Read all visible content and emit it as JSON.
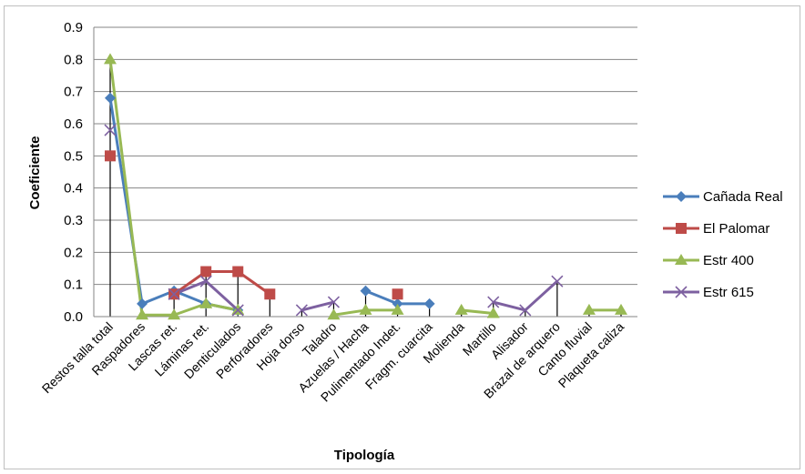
{
  "chart_data": {
    "type": "line",
    "title": "",
    "xlabel": "Tipología",
    "ylabel": "Coeficiente",
    "ylim": [
      0,
      0.9
    ],
    "yticks": [
      0.0,
      0.1,
      0.2,
      0.3,
      0.4,
      0.5,
      0.6,
      0.7,
      0.8,
      0.9
    ],
    "ytick_labels": [
      "0.0",
      "0.1",
      "0.2",
      "0.3",
      "0.4",
      "0.5",
      "0.6",
      "0.7",
      "0.8",
      "0.9"
    ],
    "grid": true,
    "legend_position": "right",
    "drop_lines": true,
    "categories": [
      "Restos talla total",
      "Raspadores",
      "Lascas ret.",
      "Láminas ret.",
      "Denticulados",
      "Perforadores",
      "Hoja dorso",
      "Taladro",
      "Azuelas / Hacha",
      "Pulimentado Indet.",
      "Fragm. cuarcita",
      "Molienda",
      "Martillo",
      "Alisador",
      "Brazal de arquero",
      "Canto fluvial",
      "Plaqueta caliza"
    ],
    "series": [
      {
        "name": "Cañada Real",
        "color": "#4a7ebb",
        "marker": "diamond",
        "values": [
          0.68,
          0.04,
          0.08,
          0.04,
          0.02,
          null,
          null,
          null,
          0.08,
          0.04,
          0.04,
          null,
          null,
          null,
          null,
          null,
          null
        ]
      },
      {
        "name": "El Palomar",
        "color": "#be4b48",
        "marker": "square",
        "values": [
          0.5,
          null,
          0.07,
          0.14,
          0.14,
          0.07,
          null,
          null,
          null,
          0.07,
          null,
          null,
          null,
          null,
          null,
          null,
          null
        ]
      },
      {
        "name": "Estr 400",
        "color": "#98b954",
        "marker": "triangle",
        "values": [
          0.8,
          0.005,
          0.005,
          0.04,
          0.02,
          null,
          null,
          0.005,
          0.02,
          0.02,
          null,
          0.02,
          0.01,
          null,
          null,
          0.02,
          0.02
        ]
      },
      {
        "name": "Estr 615",
        "color": "#7d60a0",
        "marker": "x",
        "values": [
          0.58,
          null,
          0.07,
          0.11,
          0.02,
          null,
          0.02,
          0.045,
          null,
          null,
          null,
          null,
          0.045,
          0.02,
          0.11,
          null,
          null
        ]
      }
    ]
  }
}
